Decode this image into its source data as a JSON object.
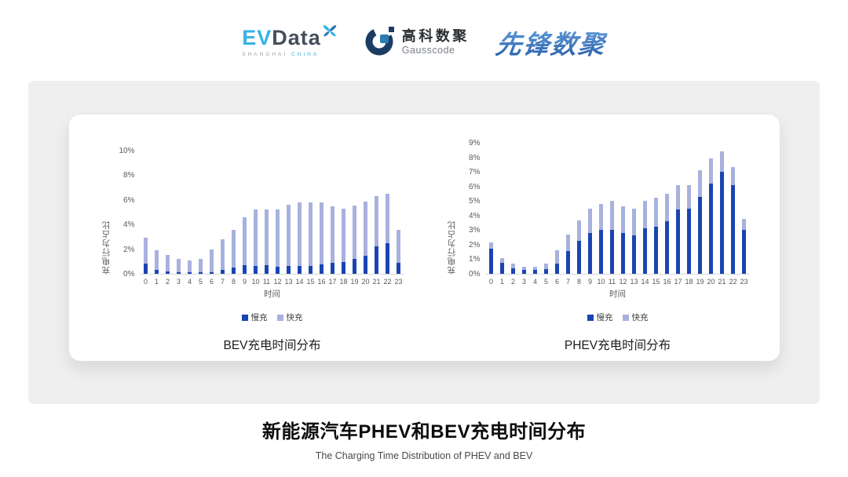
{
  "header": {
    "evdata": {
      "ev": "EV",
      "data": "Data",
      "sub_left": "SHANGHAI",
      "sub_right": "CHINA"
    },
    "gausscode": {
      "name_cn": "高科数聚",
      "name_en": "Gausscode"
    },
    "pioneer": {
      "text": "先锋数聚"
    }
  },
  "colors": {
    "slow_charge": "#1a44b2",
    "fast_charge": "#a8b1de",
    "panel_gray": "#efefef",
    "axis_line": "#d8d8d8"
  },
  "chart_data": [
    {
      "type": "bar",
      "stacked": true,
      "title": "BEV充电时间分布",
      "xlabel": "时间",
      "ylabel": "充电行为占比",
      "ylim": [
        0,
        10
      ],
      "ytick_step": 2,
      "ytick_suffix": "%",
      "grid": false,
      "legend_position": "bottom",
      "categories": [
        "0",
        "1",
        "2",
        "3",
        "4",
        "5",
        "6",
        "7",
        "8",
        "9",
        "10",
        "11",
        "12",
        "13",
        "14",
        "15",
        "16",
        "17",
        "18",
        "19",
        "20",
        "21",
        "22",
        "23"
      ],
      "series": [
        {
          "name": "慢充",
          "color": "#1a44b2",
          "values": [
            0.8,
            0.35,
            0.2,
            0.1,
            0.1,
            0.1,
            0.15,
            0.35,
            0.5,
            0.7,
            0.65,
            0.7,
            0.6,
            0.65,
            0.65,
            0.65,
            0.75,
            0.9,
            0.95,
            1.2,
            1.45,
            2.2,
            2.5,
            0.9
          ]
        },
        {
          "name": "快充",
          "color": "#a8b1de",
          "values": [
            2.1,
            1.55,
            1.3,
            1.1,
            1.0,
            1.1,
            1.85,
            2.45,
            3.1,
            3.9,
            4.55,
            4.5,
            4.6,
            4.95,
            5.15,
            5.15,
            5.05,
            4.55,
            4.35,
            4.35,
            4.4,
            4.1,
            4.0,
            2.65
          ]
        }
      ]
    },
    {
      "type": "bar",
      "stacked": true,
      "title": "PHEV充电时间分布",
      "xlabel": "时间",
      "ylabel": "充电行为占比",
      "ylim": [
        0,
        9
      ],
      "ytick_step": 1,
      "ytick_suffix": "%",
      "grid": false,
      "legend_position": "bottom",
      "categories": [
        "0",
        "1",
        "2",
        "3",
        "4",
        "5",
        "6",
        "7",
        "8",
        "9",
        "10",
        "11",
        "12",
        "13",
        "14",
        "15",
        "16",
        "17",
        "18",
        "19",
        "20",
        "21",
        "22",
        "23"
      ],
      "series": [
        {
          "name": "慢充",
          "color": "#1a44b2",
          "values": [
            1.7,
            0.75,
            0.4,
            0.25,
            0.25,
            0.35,
            0.7,
            1.55,
            2.25,
            2.8,
            3.0,
            3.0,
            2.8,
            2.65,
            3.1,
            3.25,
            3.6,
            4.4,
            4.5,
            5.3,
            6.2,
            7.0,
            6.1,
            3.0
          ]
        },
        {
          "name": "快充",
          "color": "#a8b1de",
          "values": [
            0.45,
            0.35,
            0.3,
            0.25,
            0.25,
            0.35,
            0.9,
            1.15,
            1.4,
            1.7,
            1.8,
            2.0,
            1.85,
            1.85,
            1.9,
            2.0,
            1.9,
            1.7,
            1.6,
            1.8,
            1.7,
            1.4,
            1.25,
            0.8
          ]
        }
      ]
    }
  ],
  "footer": {
    "title": "新能源汽车PHEV和BEV充电时间分布",
    "subtitle": "The Charging Time Distribution of PHEV and BEV"
  }
}
